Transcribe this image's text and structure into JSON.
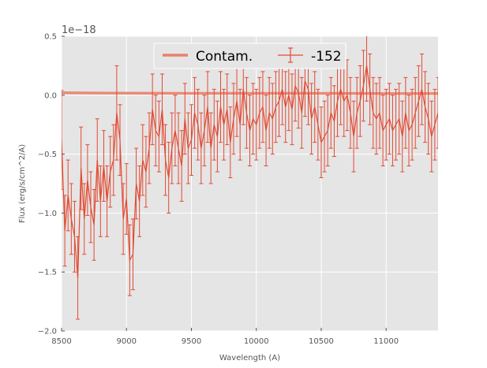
{
  "chart_data": {
    "type": "line",
    "xlabel": "Wavelength (A)",
    "ylabel": "Flux (erg/s/cm^2/A)",
    "y_offset_label": "1e−18",
    "xlim": [
      8500,
      11400
    ],
    "ylim": [
      -2.0,
      0.5
    ],
    "x_ticks": [
      8500,
      9000,
      9500,
      10000,
      10500,
      11000
    ],
    "x_tick_labels": [
      "8500",
      "9000",
      "9500",
      "10000",
      "10500",
      "11000"
    ],
    "y_ticks": [
      -2.0,
      -1.5,
      -1.0,
      -0.5,
      0.0,
      0.5
    ],
    "y_tick_labels": [
      "−2.0",
      "−1.5",
      "−1.0",
      "−0.5",
      "0.0",
      "0.5"
    ],
    "grid": true,
    "legend_position": "top-center",
    "colors": {
      "plot_background": "#e5e5e5",
      "grid": "#ffffff",
      "contam": "#e8816c",
      "spectrum": "#e24a33",
      "axis_text": "#555555"
    },
    "series": [
      {
        "name": "Contam.",
        "style": "thick-line",
        "x": [
          8500,
          9000,
          9500,
          10000,
          10500,
          11000,
          11400
        ],
        "y": [
          0.02,
          0.017,
          0.015,
          0.015,
          0.015,
          0.014,
          0.014
        ]
      },
      {
        "name": "-152",
        "style": "line-errorbars",
        "x": [
          8500,
          8525,
          8550,
          8575,
          8600,
          8625,
          8650,
          8675,
          8700,
          8725,
          8750,
          8775,
          8800,
          8825,
          8850,
          8875,
          8900,
          8925,
          8950,
          8975,
          9000,
          9025,
          9050,
          9075,
          9100,
          9125,
          9150,
          9175,
          9200,
          9225,
          9250,
          9275,
          9300,
          9325,
          9350,
          9375,
          9400,
          9425,
          9450,
          9475,
          9500,
          9525,
          9550,
          9575,
          9600,
          9625,
          9650,
          9675,
          9700,
          9725,
          9750,
          9775,
          9800,
          9825,
          9850,
          9875,
          9900,
          9925,
          9950,
          9975,
          10000,
          10025,
          10050,
          10075,
          10100,
          10125,
          10150,
          10175,
          10200,
          10225,
          10250,
          10275,
          10300,
          10325,
          10350,
          10375,
          10400,
          10425,
          10450,
          10475,
          10500,
          10525,
          10550,
          10575,
          10600,
          10625,
          10650,
          10675,
          10700,
          10725,
          10750,
          10775,
          10800,
          10825,
          10850,
          10875,
          10900,
          10925,
          10950,
          10975,
          11000,
          11025,
          11050,
          11075,
          11100,
          11125,
          11150,
          11175,
          11200,
          11225,
          11250,
          11275,
          11300,
          11325,
          11350,
          11375,
          11400
        ],
        "y": [
          -0.38,
          -1.15,
          -0.85,
          -1.05,
          -1.2,
          -1.55,
          -0.62,
          -1.05,
          -0.72,
          -0.95,
          -1.1,
          -0.55,
          -0.9,
          -0.6,
          -0.9,
          -0.65,
          -0.55,
          -0.15,
          -0.38,
          -1.05,
          -0.88,
          -1.4,
          -1.35,
          -0.75,
          -0.9,
          -0.55,
          -0.65,
          -0.45,
          -0.12,
          -0.3,
          -0.35,
          -0.12,
          -0.55,
          -0.7,
          -0.45,
          -0.3,
          -0.45,
          -0.6,
          -0.2,
          -0.45,
          -0.38,
          -0.15,
          -0.25,
          -0.45,
          -0.3,
          -0.1,
          -0.45,
          -0.25,
          -0.35,
          -0.1,
          -0.25,
          -0.12,
          -0.4,
          -0.2,
          -0.05,
          -0.25,
          0.05,
          -0.15,
          -0.3,
          -0.2,
          -0.25,
          -0.15,
          -0.1,
          -0.3,
          -0.15,
          -0.2,
          -0.1,
          -0.05,
          0.05,
          -0.1,
          0.0,
          -0.12,
          0.08,
          0.02,
          -0.15,
          0.12,
          0.05,
          -0.2,
          -0.1,
          -0.25,
          -0.4,
          -0.35,
          -0.3,
          -0.15,
          -0.22,
          -0.05,
          0.05,
          -0.05,
          0.0,
          -0.15,
          -0.35,
          -0.15,
          -0.05,
          0.08,
          0.25,
          0.05,
          -0.15,
          -0.2,
          -0.15,
          -0.3,
          -0.25,
          -0.2,
          -0.3,
          -0.25,
          -0.2,
          -0.35,
          -0.15,
          -0.3,
          -0.25,
          -0.15,
          -0.05,
          0.05,
          -0.1,
          -0.2,
          -0.35,
          -0.25,
          -0.15
        ],
        "err": [
          0.42,
          0.3,
          0.3,
          0.3,
          0.3,
          0.35,
          0.35,
          0.3,
          0.3,
          0.3,
          0.3,
          0.35,
          0.3,
          0.3,
          0.3,
          0.3,
          0.3,
          0.4,
          0.3,
          0.3,
          0.3,
          0.3,
          0.3,
          0.3,
          0.3,
          0.3,
          0.3,
          0.3,
          0.3,
          0.3,
          0.3,
          0.3,
          0.3,
          0.3,
          0.3,
          0.3,
          0.3,
          0.3,
          0.3,
          0.3,
          0.3,
          0.3,
          0.3,
          0.3,
          0.3,
          0.3,
          0.3,
          0.3,
          0.3,
          0.3,
          0.3,
          0.3,
          0.3,
          0.3,
          0.3,
          0.3,
          0.3,
          0.3,
          0.3,
          0.3,
          0.3,
          0.3,
          0.3,
          0.3,
          0.3,
          0.3,
          0.3,
          0.3,
          0.3,
          0.3,
          0.3,
          0.3,
          0.3,
          0.3,
          0.3,
          0.3,
          0.3,
          0.3,
          0.3,
          0.3,
          0.3,
          0.3,
          0.3,
          0.3,
          0.3,
          0.3,
          0.3,
          0.3,
          0.3,
          0.3,
          0.3,
          0.3,
          0.3,
          0.3,
          0.3,
          0.3,
          0.3,
          0.3,
          0.3,
          0.3,
          0.3,
          0.3,
          0.3,
          0.3,
          0.3,
          0.3,
          0.3,
          0.3,
          0.3,
          0.3,
          0.3,
          0.3,
          0.3,
          0.3,
          0.3,
          0.3,
          0.3
        ]
      }
    ]
  }
}
